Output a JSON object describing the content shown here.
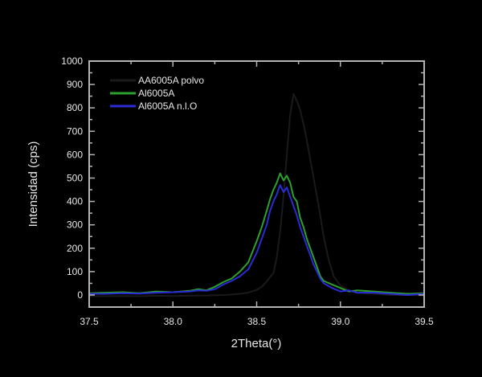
{
  "chart_data": {
    "type": "line",
    "title": "",
    "xlabel": "2Theta(°)",
    "ylabel": "Intensidad (cps)",
    "xlim": [
      37.5,
      39.5
    ],
    "ylim": [
      0,
      1000
    ],
    "x_ticks": [
      "37.5",
      "38.0",
      "38.5",
      "39.0",
      "39.5"
    ],
    "x_tick_values": [
      37.5,
      38.0,
      38.5,
      39.0,
      39.5
    ],
    "y_ticks": [
      "0",
      "100",
      "200",
      "300",
      "400",
      "500",
      "600",
      "700",
      "800",
      "900",
      "1000"
    ],
    "y_tick_values": [
      0,
      100,
      200,
      300,
      400,
      500,
      600,
      700,
      800,
      900,
      1000
    ],
    "grid": false,
    "legend_position": "upper left",
    "series": [
      {
        "name": "AA6005A polvo",
        "color": "#1a1a1a",
        "x": [
          37.5,
          37.6,
          37.7,
          37.8,
          37.9,
          38.0,
          38.1,
          38.2,
          38.3,
          38.35,
          38.4,
          38.45,
          38.5,
          38.53,
          38.56,
          38.6,
          38.62,
          38.64,
          38.66,
          38.68,
          38.7,
          38.72,
          38.74,
          38.76,
          38.78,
          38.8,
          38.82,
          38.84,
          38.86,
          38.88,
          38.9,
          38.93,
          38.96,
          39.0,
          39.05,
          39.1,
          39.2,
          39.3,
          39.4,
          39.5
        ],
        "y": [
          -5,
          -5,
          -4,
          -5,
          -3,
          -4,
          -3,
          -2,
          0,
          2,
          5,
          10,
          22,
          35,
          58,
          95,
          160,
          270,
          420,
          600,
          770,
          860,
          830,
          790,
          730,
          660,
          580,
          500,
          420,
          340,
          250,
          150,
          80,
          40,
          20,
          10,
          5,
          0,
          0,
          -2
        ]
      },
      {
        "name": "Al6005A",
        "color": "#2ca02c",
        "x": [
          37.5,
          37.6,
          37.7,
          37.8,
          37.9,
          38.0,
          38.1,
          38.15,
          38.2,
          38.25,
          38.3,
          38.35,
          38.4,
          38.45,
          38.5,
          38.53,
          38.56,
          38.58,
          38.6,
          38.62,
          38.64,
          38.66,
          38.68,
          38.7,
          38.72,
          38.74,
          38.76,
          38.78,
          38.8,
          38.82,
          38.84,
          38.86,
          38.88,
          38.9,
          38.95,
          39.0,
          39.05,
          39.1,
          39.2,
          39.3,
          39.4,
          39.5
        ],
        "y": [
          8,
          10,
          12,
          8,
          15,
          12,
          18,
          25,
          20,
          35,
          55,
          70,
          100,
          140,
          230,
          290,
          360,
          410,
          450,
          480,
          520,
          490,
          510,
          480,
          420,
          400,
          330,
          290,
          240,
          200,
          160,
          120,
          80,
          60,
          45,
          30,
          15,
          20,
          15,
          10,
          5,
          8
        ]
      },
      {
        "name": "Al6005A n.l.O",
        "color": "#2b2bd6",
        "x": [
          37.5,
          37.6,
          37.7,
          37.8,
          37.9,
          38.0,
          38.1,
          38.15,
          38.2,
          38.25,
          38.3,
          38.35,
          38.4,
          38.45,
          38.5,
          38.53,
          38.56,
          38.58,
          38.6,
          38.62,
          38.64,
          38.66,
          38.68,
          38.7,
          38.72,
          38.74,
          38.76,
          38.78,
          38.8,
          38.82,
          38.84,
          38.86,
          38.88,
          38.9,
          38.95,
          39.0,
          39.05,
          39.1,
          39.2,
          39.3,
          39.4,
          39.5
        ],
        "y": [
          5,
          5,
          8,
          6,
          10,
          12,
          15,
          20,
          18,
          25,
          45,
          60,
          80,
          110,
          180,
          240,
          300,
          360,
          400,
          430,
          470,
          440,
          460,
          420,
          380,
          340,
          290,
          250,
          210,
          170,
          130,
          100,
          70,
          50,
          30,
          15,
          20,
          10,
          10,
          5,
          0,
          5
        ]
      }
    ]
  },
  "axes": {
    "x_title": "2Theta(°)",
    "y_title": "Intensidad (cps)"
  },
  "legend": {
    "items": [
      {
        "label": "AA6005A polvo",
        "color": "#1a1a1a"
      },
      {
        "label": "Al6005A",
        "color": "#2ca02c"
      },
      {
        "label": "Al6005A n.l.O",
        "color": "#2b2bd6"
      }
    ]
  }
}
